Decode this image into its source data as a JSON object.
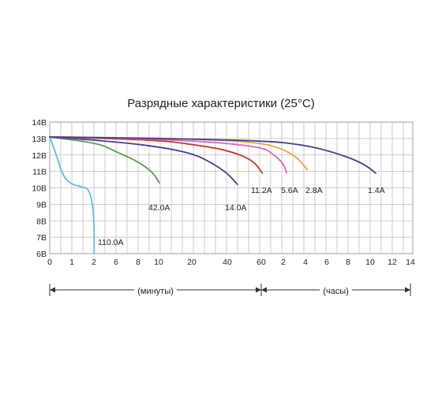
{
  "chart_data": {
    "type": "line",
    "title": "Разрядные характеристики (25°C)",
    "y_tick_labels": [
      "14В",
      "13В",
      "12В",
      "11В",
      "10В",
      "9В",
      "8В",
      "7В",
      "6В"
    ],
    "y_ticks": [
      14,
      13,
      12,
      11,
      10,
      9,
      8,
      7,
      6
    ],
    "ylim": [
      6,
      14
    ],
    "x_tick_labels": [
      "0",
      "1",
      "2",
      "6",
      "8",
      "10",
      "20",
      "40",
      "60",
      "2",
      "4",
      "6",
      "8",
      "10",
      "12",
      "14"
    ],
    "x_segments": [
      {
        "label": "(минуты)",
        "from_tick": 0,
        "to_tick": 8
      },
      {
        "label": "(часы)",
        "from_tick": 8,
        "to_tick": 15
      }
    ],
    "grid": true,
    "legend": "labels at curve ends",
    "series": [
      {
        "name": "110.0A",
        "color": "#5bbde4",
        "points": [
          [
            0,
            13.1
          ],
          [
            0.3,
            12.0
          ],
          [
            0.6,
            10.7
          ],
          [
            1.0,
            10.2
          ],
          [
            1.5,
            10.05
          ],
          [
            1.8,
            9.9
          ],
          [
            2.0,
            8.5
          ],
          [
            2.05,
            6.0
          ]
        ]
      },
      {
        "name": "42.0A",
        "color": "#5a9e4f",
        "points": [
          [
            0,
            13.1
          ],
          [
            3.0,
            12.7
          ],
          [
            6.0,
            12.2
          ],
          [
            8.0,
            11.6
          ],
          [
            9.5,
            10.9
          ],
          [
            10.2,
            10.3
          ]
        ]
      },
      {
        "name": "14.0A",
        "color": "#4a3d8f",
        "points": [
          [
            0,
            13.1
          ],
          [
            6.0,
            12.8
          ],
          [
            10.0,
            12.5
          ],
          [
            20.0,
            12.1
          ],
          [
            30.0,
            11.6
          ],
          [
            40.0,
            10.9
          ],
          [
            46.0,
            10.2
          ]
        ]
      },
      {
        "name": "11.2A",
        "color": "#c0392b",
        "points": [
          [
            0,
            13.1
          ],
          [
            10.0,
            12.9
          ],
          [
            20.0,
            12.65
          ],
          [
            40.0,
            12.3
          ],
          [
            55.0,
            11.7
          ],
          [
            63.0,
            10.9
          ]
        ]
      },
      {
        "name": "5.6A",
        "color": "#d966b8",
        "points": [
          [
            0,
            13.1
          ],
          [
            20.0,
            12.9
          ],
          [
            60.0,
            12.5
          ],
          [
            90.0,
            12.1
          ],
          [
            120.0,
            11.5
          ],
          [
            138.0,
            10.9
          ]
        ]
      },
      {
        "name": "2.8A",
        "color": "#e8a33c",
        "points": [
          [
            0,
            13.1
          ],
          [
            20.0,
            13.0
          ],
          [
            60.0,
            12.75
          ],
          [
            120.0,
            12.35
          ],
          [
            200.0,
            11.8
          ],
          [
            250.0,
            11.1
          ]
        ]
      },
      {
        "name": "1.4A",
        "color": "#4a3d8f",
        "points": [
          [
            0,
            13.1
          ],
          [
            60.0,
            12.9
          ],
          [
            240.0,
            12.6
          ],
          [
            420.0,
            12.1
          ],
          [
            560.0,
            11.5
          ],
          [
            630.0,
            10.9
          ]
        ]
      }
    ],
    "x_note": "x values in minutes; the axis shows minutes 0–60 then hours 2–14"
  }
}
